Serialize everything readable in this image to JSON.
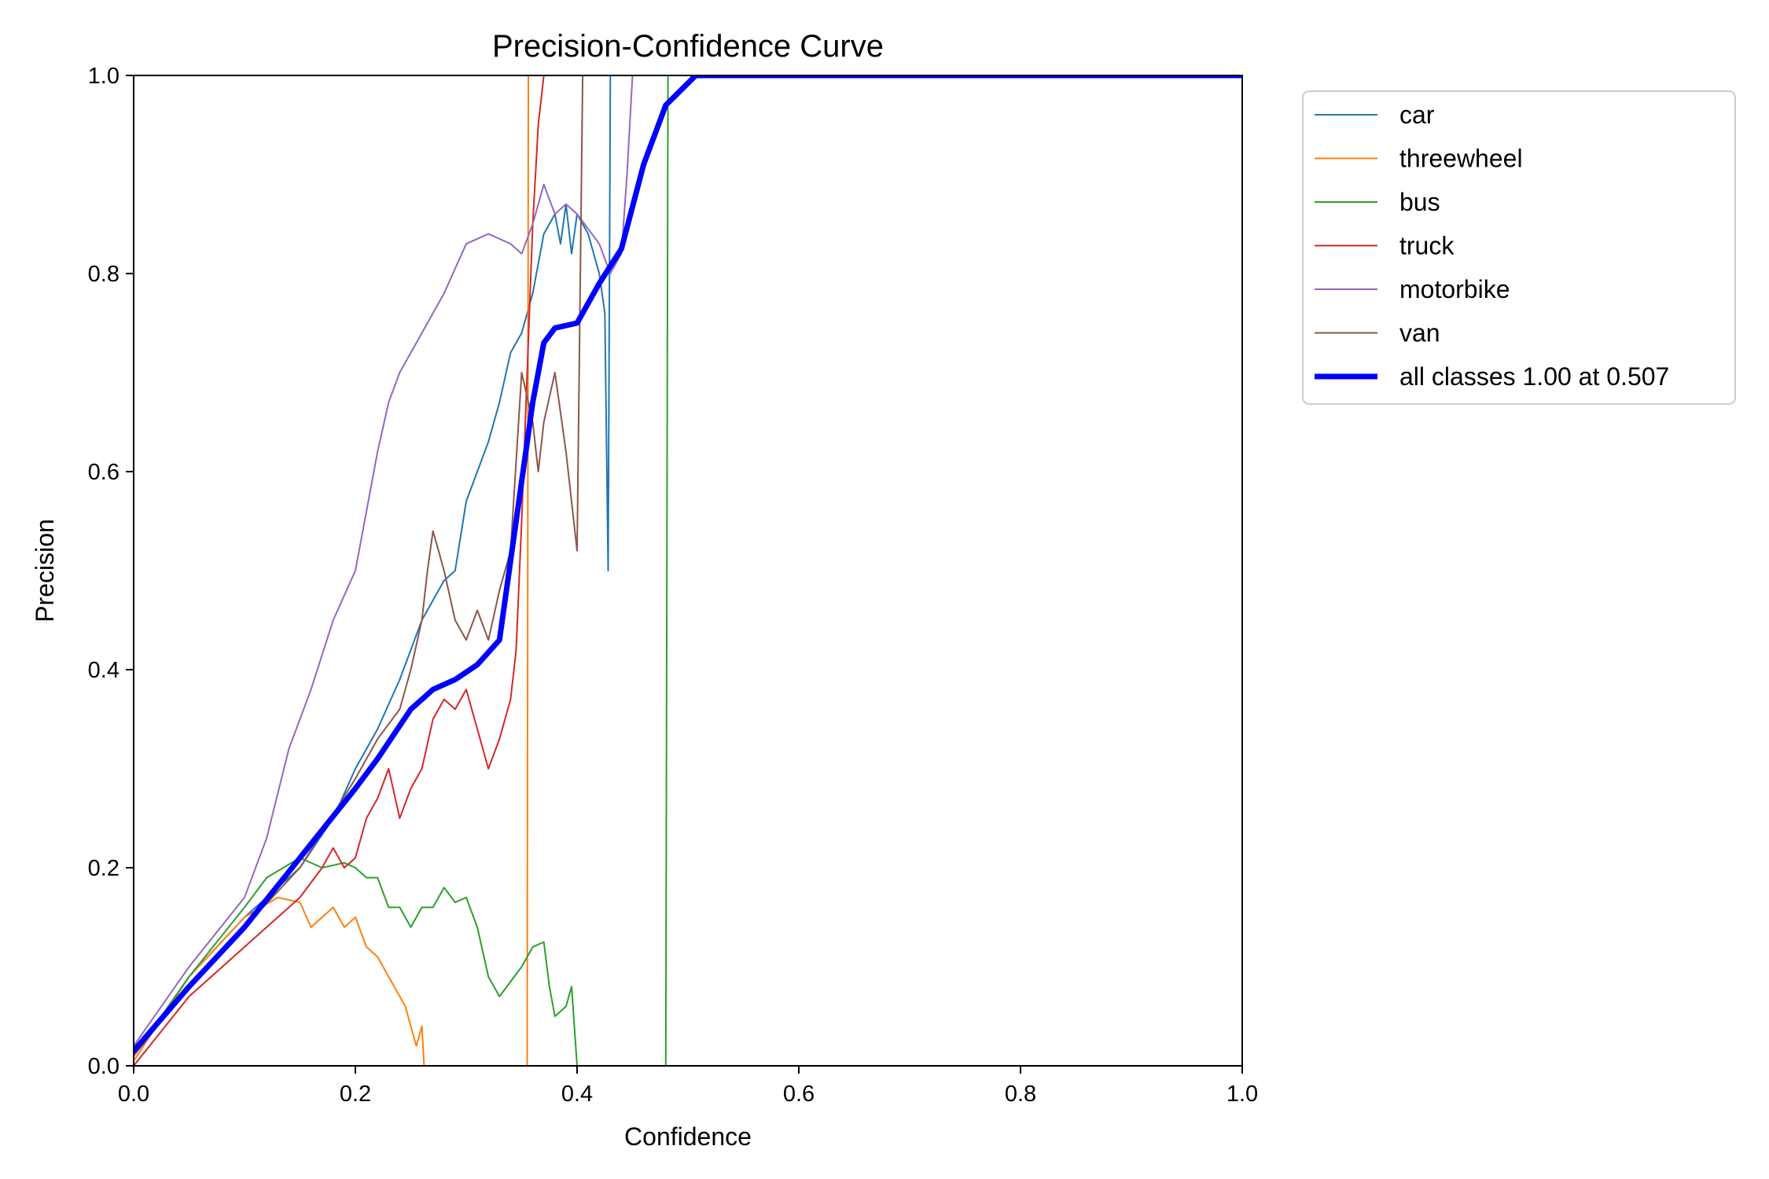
{
  "chart_data": {
    "type": "line",
    "title": "Precision-Confidence Curve",
    "xlabel": "Confidence",
    "ylabel": "Precision",
    "xlim": [
      0,
      1
    ],
    "ylim": [
      0,
      1
    ],
    "xticks": [
      0,
      0.2,
      0.4,
      0.6,
      0.8,
      1
    ],
    "yticks": [
      0,
      0.2,
      0.4,
      0.6,
      0.8,
      1
    ],
    "xtick_labels": [
      "0.0",
      "0.2",
      "0.4",
      "0.6",
      "0.8",
      "1.0"
    ],
    "ytick_labels": [
      "0.0",
      "0.2",
      "0.4",
      "0.6",
      "0.8",
      "1.0"
    ],
    "grid": false,
    "legend_position": "outside-top-right",
    "series": [
      {
        "name": "car",
        "color": "#1f77b4",
        "width": 2,
        "points": [
          [
            0,
            0.01
          ],
          [
            0.05,
            0.09
          ],
          [
            0.1,
            0.15
          ],
          [
            0.15,
            0.2
          ],
          [
            0.18,
            0.25
          ],
          [
            0.2,
            0.3
          ],
          [
            0.22,
            0.34
          ],
          [
            0.24,
            0.39
          ],
          [
            0.25,
            0.42
          ],
          [
            0.26,
            0.45
          ],
          [
            0.27,
            0.47
          ],
          [
            0.28,
            0.49
          ],
          [
            0.29,
            0.5
          ],
          [
            0.3,
            0.57
          ],
          [
            0.31,
            0.6
          ],
          [
            0.32,
            0.63
          ],
          [
            0.33,
            0.67
          ],
          [
            0.34,
            0.72
          ],
          [
            0.35,
            0.74
          ],
          [
            0.36,
            0.78
          ],
          [
            0.37,
            0.84
          ],
          [
            0.38,
            0.86
          ],
          [
            0.385,
            0.83
          ],
          [
            0.39,
            0.87
          ],
          [
            0.395,
            0.82
          ],
          [
            0.4,
            0.86
          ],
          [
            0.41,
            0.84
          ],
          [
            0.42,
            0.8
          ],
          [
            0.425,
            0.76
          ],
          [
            0.428,
            0.5
          ],
          [
            0.43,
            1.0
          ],
          [
            1.0,
            1.0
          ]
        ]
      },
      {
        "name": "threewheel",
        "color": "#ff7f0e",
        "width": 2,
        "points": [
          [
            0,
            0.005
          ],
          [
            0.05,
            0.09
          ],
          [
            0.1,
            0.15
          ],
          [
            0.13,
            0.17
          ],
          [
            0.15,
            0.165
          ],
          [
            0.16,
            0.14
          ],
          [
            0.17,
            0.15
          ],
          [
            0.18,
            0.16
          ],
          [
            0.19,
            0.14
          ],
          [
            0.2,
            0.15
          ],
          [
            0.21,
            0.12
          ],
          [
            0.22,
            0.11
          ],
          [
            0.23,
            0.09
          ],
          [
            0.24,
            0.07
          ],
          [
            0.245,
            0.06
          ],
          [
            0.25,
            0.04
          ],
          [
            0.255,
            0.02
          ],
          [
            0.26,
            0.04
          ],
          [
            0.262,
            0.0
          ],
          [
            0.355,
            0.0
          ],
          [
            0.356,
            1.0
          ],
          [
            1.0,
            1.0
          ]
        ]
      },
      {
        "name": "bus",
        "color": "#2ca02c",
        "width": 2,
        "points": [
          [
            0,
            0.01
          ],
          [
            0.05,
            0.09
          ],
          [
            0.1,
            0.16
          ],
          [
            0.12,
            0.19
          ],
          [
            0.15,
            0.21
          ],
          [
            0.17,
            0.2
          ],
          [
            0.19,
            0.205
          ],
          [
            0.2,
            0.2
          ],
          [
            0.21,
            0.19
          ],
          [
            0.22,
            0.19
          ],
          [
            0.23,
            0.16
          ],
          [
            0.24,
            0.16
          ],
          [
            0.25,
            0.14
          ],
          [
            0.26,
            0.16
          ],
          [
            0.27,
            0.16
          ],
          [
            0.28,
            0.18
          ],
          [
            0.29,
            0.165
          ],
          [
            0.3,
            0.17
          ],
          [
            0.31,
            0.14
          ],
          [
            0.32,
            0.09
          ],
          [
            0.33,
            0.07
          ],
          [
            0.34,
            0.085
          ],
          [
            0.35,
            0.1
          ],
          [
            0.36,
            0.12
          ],
          [
            0.37,
            0.125
          ],
          [
            0.375,
            0.08
          ],
          [
            0.38,
            0.05
          ],
          [
            0.39,
            0.06
          ],
          [
            0.395,
            0.08
          ],
          [
            0.4,
            0.0
          ],
          [
            0.48,
            0.0
          ],
          [
            0.482,
            1.0
          ],
          [
            1.0,
            1.0
          ]
        ]
      },
      {
        "name": "truck",
        "color": "#d62728",
        "width": 2,
        "points": [
          [
            0,
            0.0
          ],
          [
            0.05,
            0.07
          ],
          [
            0.1,
            0.12
          ],
          [
            0.13,
            0.15
          ],
          [
            0.15,
            0.17
          ],
          [
            0.17,
            0.2
          ],
          [
            0.18,
            0.22
          ],
          [
            0.19,
            0.2
          ],
          [
            0.2,
            0.21
          ],
          [
            0.21,
            0.25
          ],
          [
            0.22,
            0.27
          ],
          [
            0.23,
            0.3
          ],
          [
            0.24,
            0.25
          ],
          [
            0.25,
            0.28
          ],
          [
            0.26,
            0.3
          ],
          [
            0.27,
            0.35
          ],
          [
            0.28,
            0.37
          ],
          [
            0.29,
            0.36
          ],
          [
            0.3,
            0.38
          ],
          [
            0.31,
            0.34
          ],
          [
            0.32,
            0.3
          ],
          [
            0.33,
            0.33
          ],
          [
            0.34,
            0.37
          ],
          [
            0.345,
            0.42
          ],
          [
            0.35,
            0.55
          ],
          [
            0.355,
            0.7
          ],
          [
            0.36,
            0.85
          ],
          [
            0.365,
            0.95
          ],
          [
            0.37,
            1.0
          ],
          [
            1.0,
            1.0
          ]
        ]
      },
      {
        "name": "motorbike",
        "color": "#9467bd",
        "width": 2,
        "points": [
          [
            0,
            0.02
          ],
          [
            0.05,
            0.1
          ],
          [
            0.1,
            0.17
          ],
          [
            0.12,
            0.23
          ],
          [
            0.14,
            0.32
          ],
          [
            0.16,
            0.38
          ],
          [
            0.18,
            0.45
          ],
          [
            0.2,
            0.5
          ],
          [
            0.21,
            0.56
          ],
          [
            0.22,
            0.62
          ],
          [
            0.23,
            0.67
          ],
          [
            0.24,
            0.7
          ],
          [
            0.26,
            0.74
          ],
          [
            0.28,
            0.78
          ],
          [
            0.3,
            0.83
          ],
          [
            0.32,
            0.84
          ],
          [
            0.34,
            0.83
          ],
          [
            0.35,
            0.82
          ],
          [
            0.36,
            0.85
          ],
          [
            0.37,
            0.89
          ],
          [
            0.38,
            0.86
          ],
          [
            0.39,
            0.87
          ],
          [
            0.4,
            0.86
          ],
          [
            0.42,
            0.83
          ],
          [
            0.43,
            0.8
          ],
          [
            0.44,
            0.82
          ],
          [
            0.445,
            0.9
          ],
          [
            0.45,
            1.0
          ],
          [
            1.0,
            1.0
          ]
        ]
      },
      {
        "name": "van",
        "color": "#8c564b",
        "width": 2,
        "points": [
          [
            0,
            0.01
          ],
          [
            0.05,
            0.08
          ],
          [
            0.1,
            0.14
          ],
          [
            0.15,
            0.2
          ],
          [
            0.2,
            0.29
          ],
          [
            0.22,
            0.33
          ],
          [
            0.24,
            0.36
          ],
          [
            0.25,
            0.4
          ],
          [
            0.26,
            0.45
          ],
          [
            0.265,
            0.5
          ],
          [
            0.27,
            0.54
          ],
          [
            0.275,
            0.52
          ],
          [
            0.28,
            0.5
          ],
          [
            0.29,
            0.45
          ],
          [
            0.3,
            0.43
          ],
          [
            0.31,
            0.46
          ],
          [
            0.32,
            0.43
          ],
          [
            0.33,
            0.48
          ],
          [
            0.34,
            0.52
          ],
          [
            0.35,
            0.7
          ],
          [
            0.36,
            0.65
          ],
          [
            0.365,
            0.6
          ],
          [
            0.37,
            0.65
          ],
          [
            0.38,
            0.7
          ],
          [
            0.39,
            0.62
          ],
          [
            0.4,
            0.52
          ],
          [
            0.405,
            1.0
          ],
          [
            1.0,
            1.0
          ]
        ]
      },
      {
        "name": "all classes 1.00 at 0.507",
        "color": "#0000ff",
        "width": 7,
        "points": [
          [
            0,
            0.015
          ],
          [
            0.05,
            0.08
          ],
          [
            0.1,
            0.14
          ],
          [
            0.15,
            0.21
          ],
          [
            0.2,
            0.28
          ],
          [
            0.22,
            0.31
          ],
          [
            0.25,
            0.36
          ],
          [
            0.27,
            0.38
          ],
          [
            0.29,
            0.39
          ],
          [
            0.31,
            0.405
          ],
          [
            0.33,
            0.43
          ],
          [
            0.34,
            0.51
          ],
          [
            0.35,
            0.59
          ],
          [
            0.36,
            0.67
          ],
          [
            0.37,
            0.73
          ],
          [
            0.38,
            0.745
          ],
          [
            0.4,
            0.75
          ],
          [
            0.42,
            0.79
          ],
          [
            0.44,
            0.825
          ],
          [
            0.46,
            0.91
          ],
          [
            0.48,
            0.97
          ],
          [
            0.507,
            1.0
          ],
          [
            1.0,
            1.0
          ]
        ]
      }
    ]
  }
}
